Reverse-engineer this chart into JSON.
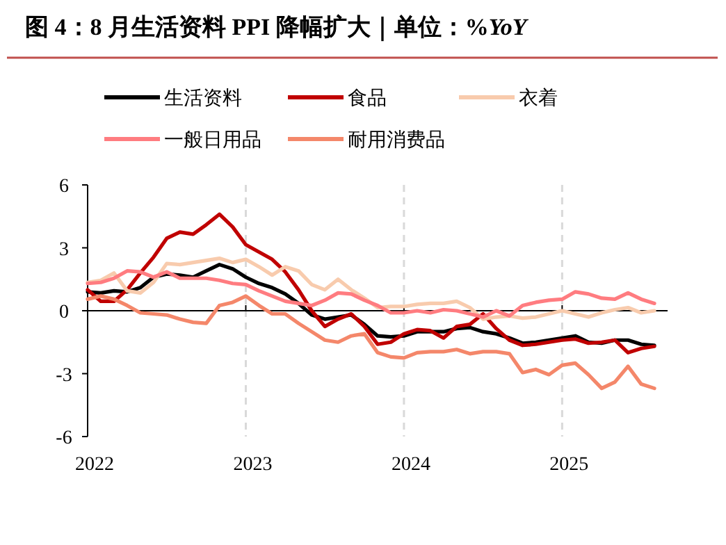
{
  "chart_data": {
    "type": "line",
    "title": "图 4：8 月生活资料 PPI 降幅扩大｜单位：%*YoY*",
    "legend": "top",
    "grid": "x",
    "line_style": "solid",
    "marker": "none",
    "x": [
      "2022-01",
      "2022-02",
      "2022-03",
      "2022-04",
      "2022-05",
      "2022-06",
      "2022-07",
      "2022-08",
      "2022-09",
      "2022-10",
      "2022-11",
      "2022-12",
      "2023-01",
      "2023-02",
      "2023-03",
      "2023-04",
      "2023-05",
      "2023-06",
      "2023-07",
      "2023-08",
      "2023-09",
      "2023-10",
      "2023-11",
      "2023-12",
      "2024-01",
      "2024-02",
      "2024-03",
      "2024-04",
      "2024-05",
      "2024-06",
      "2024-07",
      "2024-08",
      "2024-09",
      "2024-10",
      "2024-11",
      "2024-12",
      "2025-01",
      "2025-02",
      "2025-03",
      "2025-04",
      "2025-05",
      "2025-06",
      "2025-07",
      "2025-08"
    ],
    "xlim": [
      "2022-01",
      "2025-09"
    ],
    "xticks": [
      {
        "value": "2022-01",
        "label": "2022"
      },
      {
        "value": "2023-01",
        "label": "2023"
      },
      {
        "value": "2024-01",
        "label": "2024"
      },
      {
        "value": "2025-01",
        "label": "2025"
      }
    ],
    "ylim": [
      -6,
      6
    ],
    "yticks": [
      -6,
      -3,
      0,
      3,
      6
    ],
    "series": [
      {
        "name": "生活资料",
        "color": "#000000",
        "values": [
          0.9,
          0.85,
          0.95,
          0.9,
          1.1,
          1.6,
          1.75,
          1.7,
          1.6,
          1.9,
          2.2,
          2.0,
          1.6,
          1.3,
          1.1,
          0.8,
          0.35,
          -0.2,
          -0.4,
          -0.3,
          -0.2,
          -0.65,
          -1.2,
          -1.25,
          -1.2,
          -1.0,
          -1.0,
          -1.0,
          -0.85,
          -0.8,
          -1.0,
          -1.1,
          -1.3,
          -1.55,
          -1.5,
          -1.4,
          -1.3,
          -1.2,
          -1.5,
          -1.55,
          -1.4,
          -1.4,
          -1.6,
          -1.65
        ]
      },
      {
        "name": "食品",
        "color": "#c00000",
        "values": [
          1.0,
          0.45,
          0.45,
          1.0,
          1.8,
          2.55,
          3.45,
          3.75,
          3.65,
          4.1,
          4.6,
          4.0,
          3.15,
          2.8,
          2.45,
          1.85,
          1.0,
          0.0,
          -0.75,
          -0.4,
          -0.15,
          -0.75,
          -1.6,
          -1.5,
          -1.1,
          -0.9,
          -0.95,
          -1.3,
          -0.75,
          -0.65,
          -0.15,
          -0.85,
          -1.4,
          -1.65,
          -1.6,
          -1.5,
          -1.4,
          -1.35,
          -1.55,
          -1.5,
          -1.4,
          -2.0,
          -1.8,
          -1.7
        ]
      },
      {
        "name": "衣着",
        "color": "#f8cbad",
        "values": [
          1.35,
          1.45,
          1.8,
          0.95,
          0.85,
          1.35,
          2.25,
          2.2,
          2.3,
          2.4,
          2.5,
          2.3,
          2.45,
          2.1,
          1.7,
          2.1,
          1.9,
          1.25,
          1.0,
          1.5,
          1.0,
          0.6,
          0.15,
          0.2,
          0.2,
          0.3,
          0.35,
          0.35,
          0.45,
          0.15,
          -0.4,
          -0.3,
          -0.25,
          -0.35,
          -0.3,
          -0.15,
          0.0,
          -0.15,
          -0.3,
          -0.1,
          0.05,
          0.15,
          -0.1,
          0.0
        ]
      },
      {
        "name": "一般日用品",
        "color": "#ff7c80",
        "values": [
          1.3,
          1.35,
          1.55,
          1.9,
          1.85,
          1.6,
          1.85,
          1.55,
          1.55,
          1.55,
          1.45,
          1.3,
          1.25,
          0.95,
          0.7,
          0.45,
          0.35,
          0.25,
          0.5,
          0.85,
          0.8,
          0.5,
          0.25,
          -0.1,
          -0.1,
          0.0,
          -0.1,
          0.05,
          0.0,
          -0.15,
          -0.3,
          0.0,
          -0.25,
          0.25,
          0.4,
          0.5,
          0.55,
          0.9,
          0.8,
          0.6,
          0.55,
          0.85,
          0.55,
          0.35
        ]
      },
      {
        "name": "耐用消费品",
        "color": "#f4876a",
        "values": [
          0.55,
          0.7,
          0.55,
          0.25,
          -0.1,
          -0.15,
          -0.2,
          -0.4,
          -0.55,
          -0.6,
          0.25,
          0.4,
          0.7,
          0.25,
          -0.15,
          -0.15,
          -0.6,
          -1.0,
          -1.4,
          -1.5,
          -1.2,
          -1.1,
          -2.0,
          -2.2,
          -2.25,
          -2.0,
          -1.95,
          -1.95,
          -1.85,
          -2.05,
          -1.95,
          -1.95,
          -2.05,
          -2.95,
          -2.8,
          -3.05,
          -2.6,
          -2.5,
          -3.05,
          -3.7,
          -3.4,
          -2.65,
          -3.5,
          -3.7
        ]
      }
    ]
  }
}
